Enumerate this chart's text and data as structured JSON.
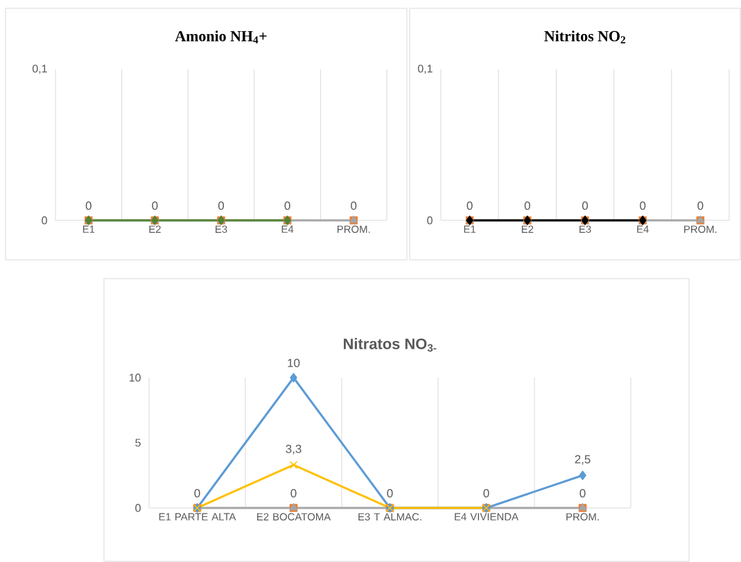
{
  "chart_data": [
    {
      "type": "line",
      "title": "Amonio NH$_{4}$+",
      "categories": [
        "E1",
        "E2",
        "E3",
        "E4",
        "PROM."
      ],
      "ylim": [
        0,
        0.1
      ],
      "yticks": [
        0,
        {
          "value": 0.1,
          "label": "0,1"
        }
      ],
      "grid": "x",
      "series": [
        {
          "type": "scatter",
          "color": "#ed7d31",
          "marker": "square",
          "values": [
            0,
            0,
            0,
            0,
            0
          ]
        },
        {
          "color": "#a5a5a5",
          "marker": "triangle",
          "values": [
            0,
            0,
            0,
            0,
            0
          ],
          "value_labels": [
            "0",
            "0",
            "0",
            "0",
            "0"
          ]
        },
        {
          "color": "#548235",
          "marker": "diamond",
          "values": [
            0,
            0,
            0,
            0,
            null
          ]
        }
      ]
    },
    {
      "type": "line",
      "title": "Nitritos NO$_{2}$",
      "categories": [
        "E1",
        "E2",
        "E3",
        "E4",
        "PROM."
      ],
      "ylim": [
        0,
        0.1
      ],
      "yticks": [
        0,
        {
          "value": 0.1,
          "label": "0,1"
        }
      ],
      "grid": "x",
      "series": [
        {
          "type": "scatter",
          "color": "#ed7d31",
          "marker": "square",
          "values": [
            0,
            0,
            0,
            0,
            0
          ]
        },
        {
          "color": "#a5a5a5",
          "marker": "triangle",
          "values": [
            0,
            0,
            0,
            0,
            0
          ],
          "value_labels": [
            "0",
            "0",
            "0",
            "0",
            "0"
          ]
        },
        {
          "color": "#000000",
          "marker": "diamond",
          "values": [
            0,
            0,
            0,
            0,
            null
          ]
        }
      ]
    },
    {
      "type": "line",
      "title": "Nitratos NO$_{3-}$",
      "categories": [
        "E1 PARTE ALTA",
        "E2 BOCATOMA",
        "E3 T ALMAC.",
        "E4 VIVIENDA",
        "PROM."
      ],
      "ylim": [
        0,
        10
      ],
      "yticks": [
        0,
        5,
        10
      ],
      "grid": "x",
      "series": [
        {
          "type": "scatter",
          "color": "#ed7d31",
          "marker": "square",
          "values": [
            0,
            0,
            0,
            0,
            0
          ]
        },
        {
          "color": "#a5a5a5",
          "marker": "triangle",
          "values": [
            0,
            0,
            0,
            0,
            0
          ],
          "value_labels": [
            "0",
            "0",
            "0",
            "0",
            "0"
          ]
        },
        {
          "color": "#5b9bd5",
          "marker": "diamond",
          "values": [
            0,
            10,
            0,
            0,
            2.5
          ],
          "value_labels": [
            null,
            "10",
            null,
            null,
            "2,5"
          ]
        },
        {
          "color": "#ffc000",
          "marker": "cross",
          "values": [
            0,
            3.3,
            0,
            0,
            null
          ],
          "value_labels": [
            null,
            "3,3",
            null,
            null,
            null
          ]
        }
      ]
    }
  ]
}
